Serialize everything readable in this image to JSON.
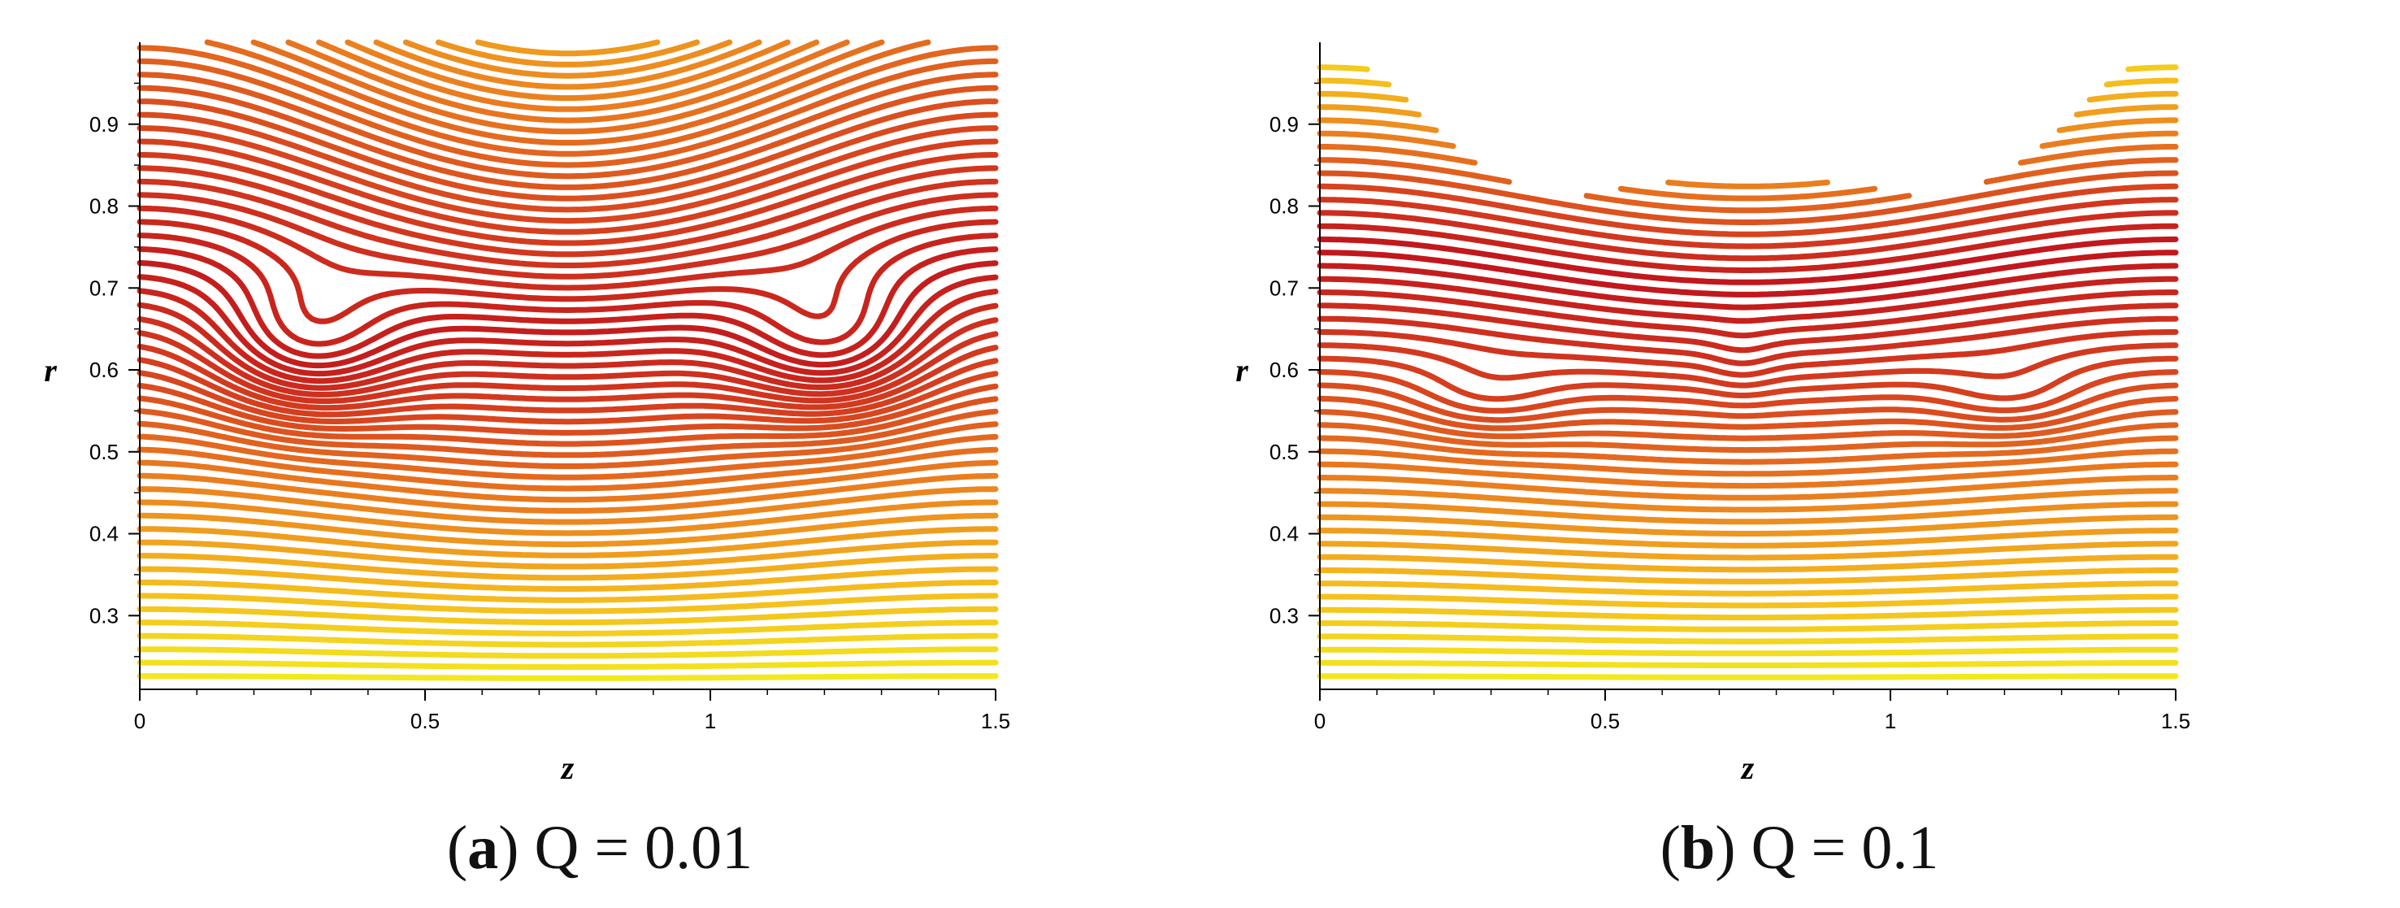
{
  "chart_data": [
    {
      "type": "contour",
      "caption_letter": "a",
      "caption_text": "Q = 0.01",
      "xlabel": "z",
      "ylabel": "r",
      "xlim": [
        0,
        1.5
      ],
      "ylim": [
        0.21,
        1.0
      ],
      "x_ticks": [
        0,
        0.5,
        1,
        1.5
      ],
      "x_tick_labels": [
        "0",
        "0.5",
        "1",
        "1.5"
      ],
      "y_ticks": [
        0.3,
        0.4,
        0.5,
        0.6,
        0.7,
        0.8,
        0.9
      ],
      "y_tick_labels": [
        "0.3",
        "0.4",
        "0.5",
        "0.6",
        "0.7",
        "0.8",
        "0.9"
      ],
      "colormap": [
        "#f2ee1e",
        "#f5b81d",
        "#e9781e",
        "#d53d1e",
        "#c0141d"
      ],
      "wall": {
        "mean_r": 0.79,
        "amplitude_r": 0.05,
        "wavelength_z": 1.5
      },
      "trapping_bolus_centers": [
        {
          "z": 0.29,
          "r": 0.625
        },
        {
          "z": 1.22,
          "r": 0.625
        }
      ],
      "stagnation_r": 0.7
    },
    {
      "type": "contour",
      "caption_letter": "b",
      "caption_text": "Q = 0.1",
      "xlabel": "z",
      "ylabel": "r",
      "xlim": [
        0,
        1.5
      ],
      "ylim": [
        0.21,
        1.0
      ],
      "x_ticks": [
        0,
        0.5,
        1,
        1.5
      ],
      "x_tick_labels": [
        "0",
        "0.5",
        "1",
        "1.5"
      ],
      "y_ticks": [
        0.3,
        0.4,
        0.5,
        0.6,
        0.7,
        0.8,
        0.9
      ],
      "y_tick_labels": [
        "0.3",
        "0.4",
        "0.5",
        "0.6",
        "0.7",
        "0.8",
        "0.9"
      ],
      "colormap": [
        "#f2ee1e",
        "#f5b81d",
        "#e9781e",
        "#d53d1e",
        "#c0141d"
      ],
      "wall": {
        "mean_r": 0.79,
        "amplitude_r": 0.05,
        "wavelength_z": 1.5
      },
      "trapping_bolus_centers": [
        {
          "z": 0.29,
          "r": 0.56
        },
        {
          "z": 1.22,
          "r": 0.56
        },
        {
          "z": 0.74,
          "r": 0.605
        }
      ],
      "stagnation_r": 0.62
    }
  ]
}
